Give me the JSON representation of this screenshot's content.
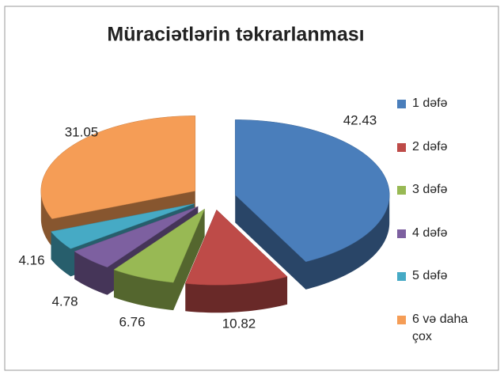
{
  "chart_data": {
    "type": "pie",
    "title": "Müraciətlərin təkrarlanması",
    "categories": [
      "1 dəfə",
      "2 dəfə",
      "3 dəfə",
      "4 dəfə",
      "5 dəfə",
      "6 və daha çox"
    ],
    "values": [
      42.43,
      10.82,
      6.76,
      4.78,
      4.16,
      31.05
    ],
    "colors": [
      "#4a7ebb",
      "#be4b48",
      "#98b954",
      "#7d60a0",
      "#46aac5",
      "#f59d56"
    ],
    "legend": "right"
  }
}
